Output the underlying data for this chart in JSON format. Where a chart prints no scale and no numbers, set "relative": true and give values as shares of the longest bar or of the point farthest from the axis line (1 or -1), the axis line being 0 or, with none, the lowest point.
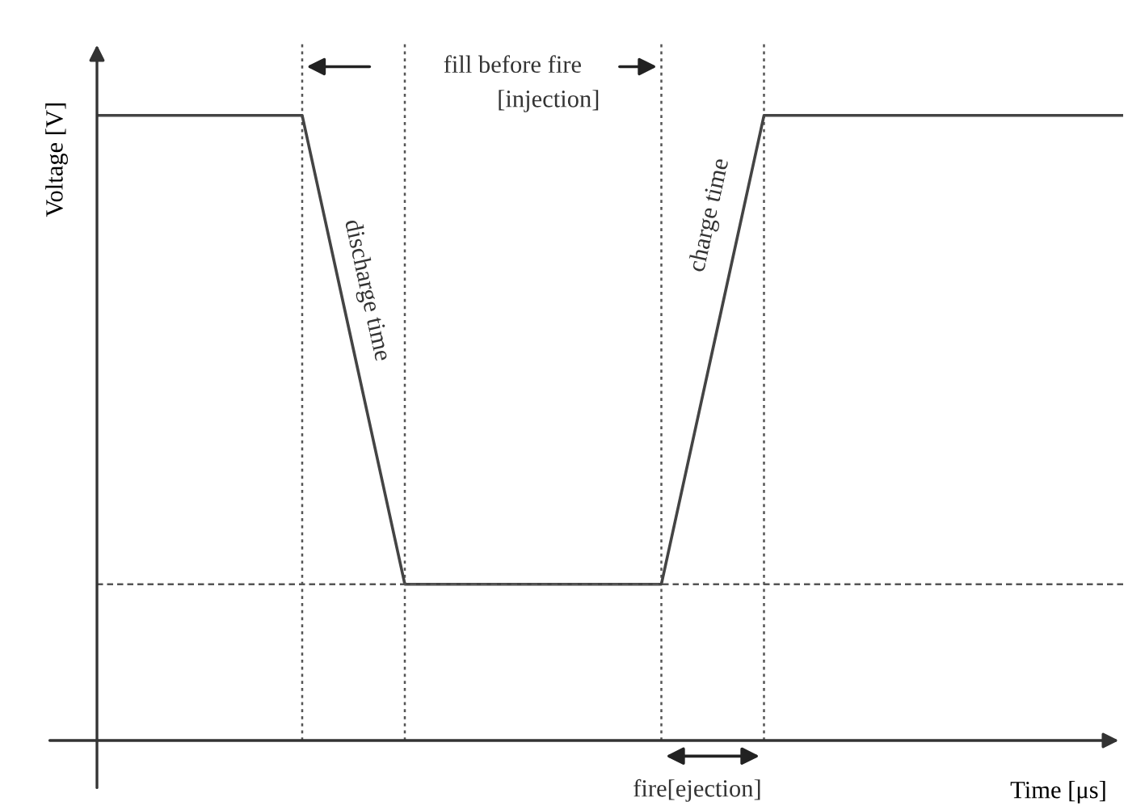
{
  "chart_data": {
    "type": "line",
    "relative": true,
    "xlabel": "Time [μs]",
    "ylabel": "Voltage [V]",
    "categories": [
      null,
      null,
      null,
      null,
      null,
      null,
      null,
      null,
      null,
      null,
      null,
      null,
      null,
      null,
      null,
      null,
      null,
      null,
      null,
      null,
      null
    ],
    "series": [
      {
        "color": "#444444",
        "values": [
          1,
          1,
          1,
          1,
          1,
          0.625,
          0.25,
          0.25,
          0.25,
          0.25,
          0.25,
          0.25,
          0.625,
          1,
          1,
          1,
          1,
          1,
          1,
          1,
          1
        ]
      }
    ],
    "ref_lines": [
      {
        "axis": "y",
        "value": 0.25,
        "line_style": "dashed",
        "color": "#555555"
      }
    ],
    "grid": "x",
    "annotations": [
      "fill before fire",
      "[injection]",
      "discharge time",
      "charge time",
      "fire[ejection]"
    ]
  }
}
